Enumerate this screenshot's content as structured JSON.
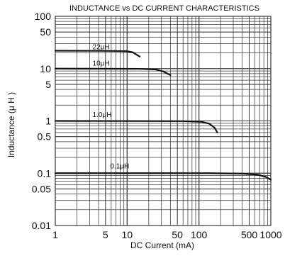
{
  "chart_data": {
    "type": "line",
    "title": "INDUCTANCE vs DC CURRENT CHARACTERISTICS",
    "xlabel": "DC Current (mA)",
    "ylabel": "Inductance (μ H )",
    "xscale": "log",
    "yscale": "log",
    "xlim": [
      1,
      1000
    ],
    "ylim": [
      0.01,
      100
    ],
    "grid": true,
    "x_ticks": [
      {
        "value": 1,
        "label": "1"
      },
      {
        "value": 5,
        "label": "5"
      },
      {
        "value": 10,
        "label": "10"
      },
      {
        "value": 50,
        "label": "50"
      },
      {
        "value": 100,
        "label": "100"
      },
      {
        "value": 500,
        "label": "500"
      },
      {
        "value": 1000,
        "label": "1000"
      }
    ],
    "y_ticks": [
      {
        "value": 100,
        "label": "100"
      },
      {
        "value": 50,
        "label": "50"
      },
      {
        "value": 10,
        "label": "10"
      },
      {
        "value": 5,
        "label": "5"
      },
      {
        "value": 1,
        "label": "1"
      },
      {
        "value": 0.5,
        "label": "0.5"
      },
      {
        "value": 0.1,
        "label": "0.1"
      },
      {
        "value": 0.05,
        "label": "0.05"
      },
      {
        "value": 0.01,
        "label": "0.01"
      }
    ],
    "series": [
      {
        "name": "22μH",
        "label_anchor": {
          "x": 3.3,
          "y": 23.5
        },
        "points": [
          [
            1,
            22
          ],
          [
            6,
            21.8
          ],
          [
            10,
            21.5
          ],
          [
            12,
            20.5
          ],
          [
            13.5,
            18.5
          ],
          [
            15,
            17
          ]
        ]
      },
      {
        "name": "10μH",
        "label_anchor": {
          "x": 3.3,
          "y": 11.4
        },
        "points": [
          [
            1,
            10
          ],
          [
            15,
            9.9
          ],
          [
            25,
            9.6
          ],
          [
            32,
            8.8
          ],
          [
            38,
            7.8
          ],
          [
            40,
            7.5
          ]
        ]
      },
      {
        "name": "1.0μH",
        "label_anchor": {
          "x": 3.3,
          "y": 1.18
        },
        "points": [
          [
            1,
            1.0
          ],
          [
            60,
            0.99
          ],
          [
            110,
            0.96
          ],
          [
            140,
            0.88
          ],
          [
            165,
            0.74
          ],
          [
            180,
            0.6
          ]
        ]
      },
      {
        "name": "0.1μH",
        "label_anchor": {
          "x": 5.8,
          "y": 0.124
        },
        "points": [
          [
            1,
            0.1
          ],
          [
            150,
            0.1
          ],
          [
            400,
            0.098
          ],
          [
            650,
            0.094
          ],
          [
            850,
            0.085
          ],
          [
            1000,
            0.075
          ]
        ]
      }
    ]
  },
  "colors": {
    "background": "#ffffff",
    "grid": "#3a3a3a",
    "curve": "#111111",
    "text": "#111111"
  }
}
